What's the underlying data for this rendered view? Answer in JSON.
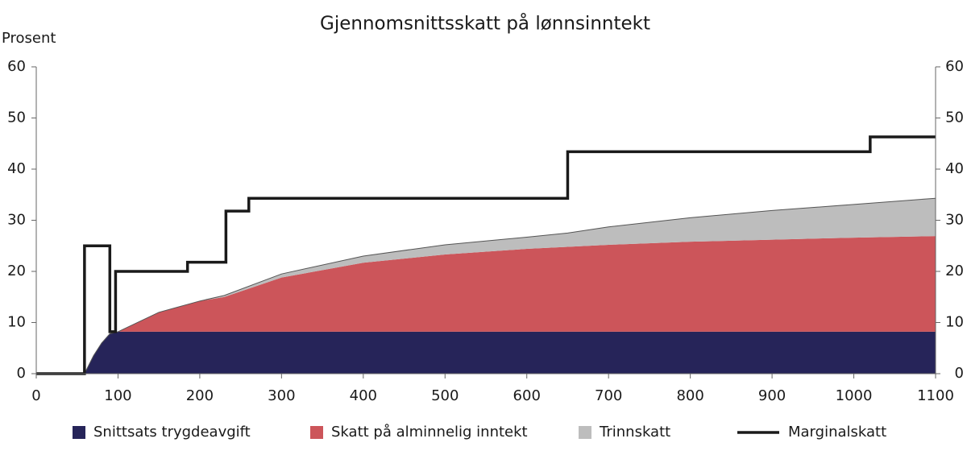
{
  "chart_data": {
    "type": "stacked-area-step",
    "title": "Gjennomsnittsskatt på lønnsinntekt",
    "y_label": "Prosent",
    "x": [
      0,
      59,
      70,
      80,
      90,
      100,
      150,
      200,
      230,
      300,
      400,
      500,
      600,
      650,
      700,
      800,
      900,
      1000,
      1100
    ],
    "series": [
      {
        "name": "Snittsats trygdeavgift",
        "color": "#262459",
        "values": [
          0,
          0,
          3.5,
          6,
          7.8,
          8.2,
          8.2,
          8.2,
          8.2,
          8.2,
          8.2,
          8.2,
          8.2,
          8.2,
          8.2,
          8.2,
          8.2,
          8.2,
          8.2
        ]
      },
      {
        "name": "Skatt på alminnelig inntekt",
        "color": "#cc555a",
        "values": [
          0,
          0,
          0,
          0,
          0,
          0,
          3.8,
          6,
          6.8,
          10.6,
          13.5,
          15.1,
          16.2,
          16.6,
          17,
          17.6,
          18,
          18.4,
          18.7
        ]
      },
      {
        "name": "Trinnskatt",
        "color": "#bdbdbd",
        "values": [
          0,
          0,
          0,
          0,
          0,
          0,
          0,
          0,
          0.3,
          0.7,
          1.3,
          1.9,
          2.3,
          2.7,
          3.5,
          4.7,
          5.7,
          6.5,
          7.4
        ]
      },
      {
        "name": "Marginalskatt",
        "color": "#1a1a1a",
        "line": true,
        "x": [
          0,
          59,
          59,
          90,
          90,
          97,
          97,
          185,
          185,
          232,
          232,
          260,
          260,
          650,
          650,
          1020,
          1020,
          1100
        ],
        "values": [
          0,
          0,
          25,
          25,
          8.2,
          8.2,
          20,
          20,
          21.8,
          21.8,
          31.8,
          31.8,
          34.3,
          34.3,
          43.4,
          43.4,
          46.3,
          46.3
        ]
      }
    ],
    "xlim": [
      0,
      1100
    ],
    "xticks": [
      0,
      100,
      200,
      300,
      400,
      500,
      600,
      700,
      800,
      900,
      1000,
      1100
    ],
    "ylim": [
      0,
      60
    ],
    "yticks": [
      0,
      10,
      20,
      30,
      40,
      50,
      60
    ],
    "y2lim": [
      0,
      60
    ],
    "y2ticks": [
      0,
      10,
      20,
      30,
      40,
      50,
      60
    ]
  }
}
